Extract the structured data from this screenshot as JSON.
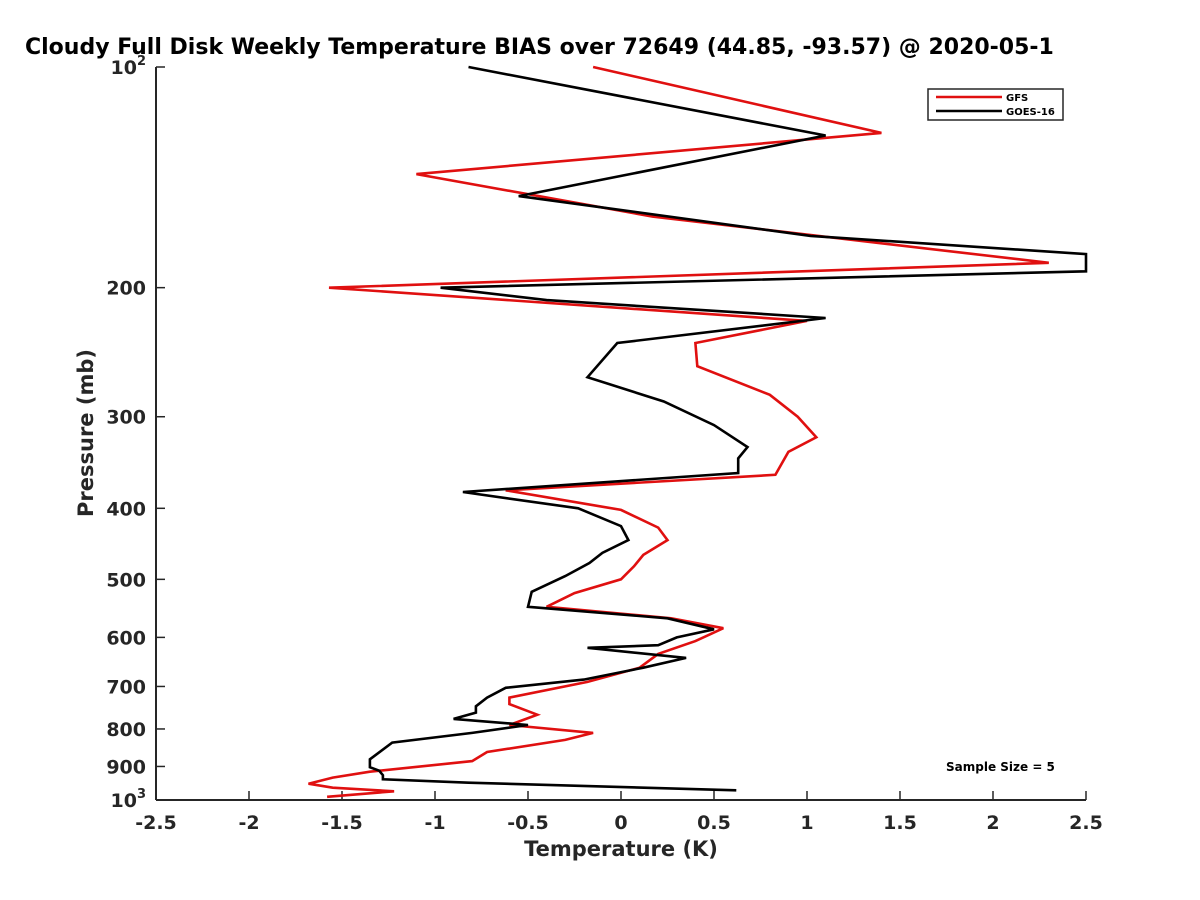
{
  "chart_data": {
    "type": "line",
    "title": "Cloudy Full Disk Weekly Temperature BIAS over 72649 (44.85, -93.57) @ 2020-05-1",
    "xlabel": "Temperature (K)",
    "ylabel": "Pressure (mb)",
    "xlim": [
      -2.5,
      2.5
    ],
    "ylim": [
      1000,
      100
    ],
    "yscale": "log",
    "x_ticks": [
      "-2.5",
      "-2",
      "-1.5",
      "-1",
      "-0.5",
      "0",
      "0.5",
      "1",
      "1.5",
      "2",
      "2.5"
    ],
    "y_ticks": [
      {
        "value": 100,
        "base": "10",
        "exp": "2"
      },
      {
        "value": 200,
        "label": "200"
      },
      {
        "value": 300,
        "label": "300"
      },
      {
        "value": 400,
        "label": "400"
      },
      {
        "value": 500,
        "label": "500"
      },
      {
        "value": 600,
        "label": "600"
      },
      {
        "value": 700,
        "label": "700"
      },
      {
        "value": 800,
        "label": "800"
      },
      {
        "value": 900,
        "label": "900"
      },
      {
        "value": 1000,
        "base": "10",
        "exp": "3"
      }
    ],
    "legend_position": "top-right",
    "grid": false,
    "annotation": "Sample Size = 5",
    "series": [
      {
        "name": "GFS",
        "color": "#e01010",
        "points": [
          [
            -0.15,
            100
          ],
          [
            1.4,
            123
          ],
          [
            -1.1,
            140
          ],
          [
            0.17,
            160
          ],
          [
            2.3,
            185
          ],
          [
            -1.57,
            200
          ],
          [
            1.0,
            222
          ],
          [
            0.4,
            238
          ],
          [
            0.41,
            256
          ],
          [
            0.8,
            280
          ],
          [
            0.95,
            300
          ],
          [
            1.05,
            320
          ],
          [
            0.9,
            335
          ],
          [
            0.83,
            360
          ],
          [
            -0.62,
            378
          ],
          [
            0.0,
            402
          ],
          [
            0.2,
            425
          ],
          [
            0.25,
            442
          ],
          [
            0.12,
            463
          ],
          [
            0.07,
            480
          ],
          [
            0.0,
            500
          ],
          [
            -0.25,
            522
          ],
          [
            -0.4,
            545
          ],
          [
            0.27,
            565
          ],
          [
            0.55,
            583
          ],
          [
            0.4,
            607
          ],
          [
            0.2,
            632
          ],
          [
            0.1,
            660
          ],
          [
            -0.18,
            690
          ],
          [
            -0.6,
            725
          ],
          [
            -0.6,
            740
          ],
          [
            -0.45,
            765
          ],
          [
            -0.6,
            790
          ],
          [
            -0.15,
            810
          ],
          [
            -0.3,
            828
          ],
          [
            -0.72,
            860
          ],
          [
            -0.8,
            885
          ],
          [
            -1.35,
            915
          ],
          [
            -1.55,
            932
          ],
          [
            -1.68,
            950
          ],
          [
            -1.55,
            962
          ],
          [
            -1.22,
            973
          ],
          [
            -1.58,
            990
          ]
        ]
      },
      {
        "name": "GOES-16",
        "color": "#000000",
        "points": [
          [
            -0.82,
            100
          ],
          [
            1.1,
            124
          ],
          [
            -0.55,
            150
          ],
          [
            1.02,
            170
          ],
          [
            2.5,
            180
          ],
          [
            2.5,
            190
          ],
          [
            -0.97,
            200
          ],
          [
            -0.4,
            208
          ],
          [
            1.1,
            220
          ],
          [
            -0.02,
            238
          ],
          [
            -0.18,
            265
          ],
          [
            0.23,
            286
          ],
          [
            0.5,
            308
          ],
          [
            0.68,
            330
          ],
          [
            0.63,
            342
          ],
          [
            0.63,
            358
          ],
          [
            -0.85,
            380
          ],
          [
            -0.23,
            400
          ],
          [
            0.0,
            423
          ],
          [
            0.04,
            442
          ],
          [
            -0.1,
            460
          ],
          [
            -0.17,
            475
          ],
          [
            -0.3,
            495
          ],
          [
            -0.48,
            520
          ],
          [
            -0.5,
            545
          ],
          [
            0.25,
            565
          ],
          [
            0.5,
            585
          ],
          [
            0.3,
            600
          ],
          [
            0.2,
            615
          ],
          [
            -0.18,
            620
          ],
          [
            0.35,
            640
          ],
          [
            0.12,
            660
          ],
          [
            -0.2,
            685
          ],
          [
            -0.62,
            703
          ],
          [
            -0.72,
            725
          ],
          [
            -0.78,
            745
          ],
          [
            -0.78,
            760
          ],
          [
            -0.9,
            775
          ],
          [
            -0.5,
            790
          ],
          [
            -0.8,
            810
          ],
          [
            -1.23,
            835
          ],
          [
            -1.35,
            880
          ],
          [
            -1.35,
            902
          ],
          [
            -1.3,
            912
          ],
          [
            -1.28,
            925
          ],
          [
            -1.28,
            937
          ],
          [
            -0.82,
            947
          ],
          [
            0.62,
            970
          ]
        ]
      }
    ]
  }
}
